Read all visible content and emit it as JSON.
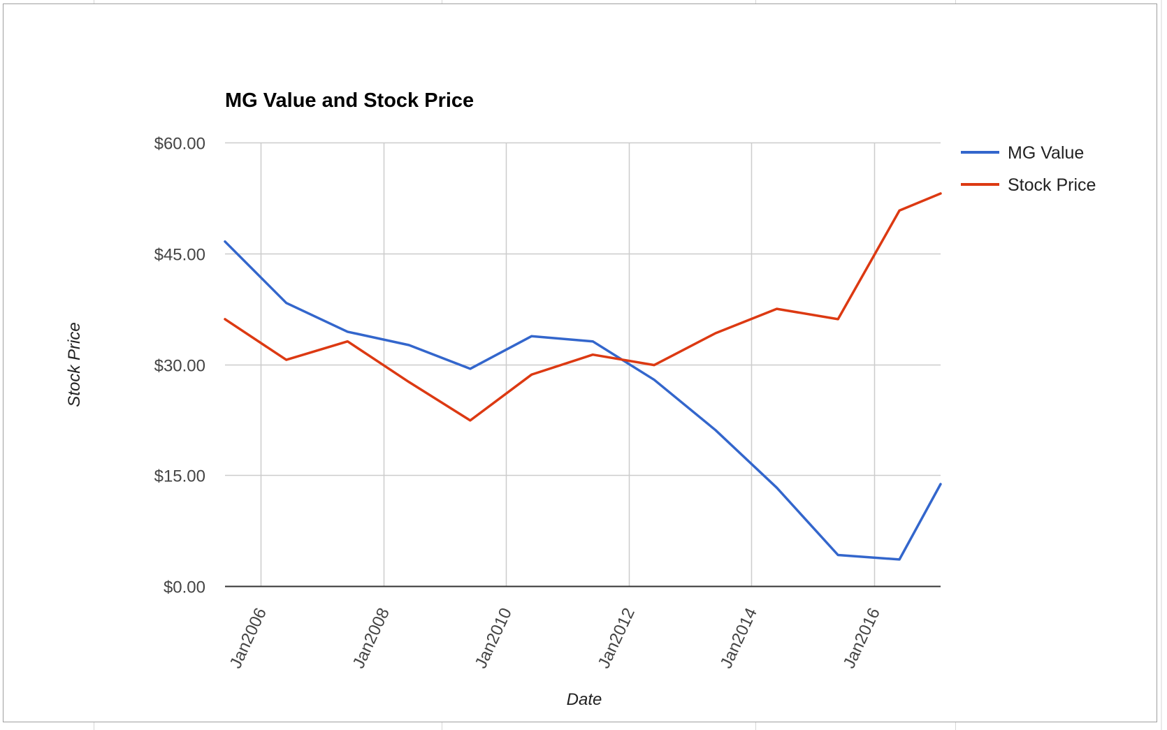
{
  "chart_data": {
    "type": "line",
    "title": "MG Value and Stock Price",
    "xlabel": "Date",
    "ylabel": "Stock Price",
    "ylim": [
      0,
      60
    ],
    "y_ticks": [
      "$0.00",
      "$15.00",
      "$30.00",
      "$45.00",
      "$60.00"
    ],
    "y_tick_values": [
      0,
      15,
      30,
      45,
      60
    ],
    "x_ticks": [
      "Jan2006",
      "Jan2008",
      "Jan2010",
      "Jan2012",
      "Jan2014",
      "Jan2016"
    ],
    "x_tick_values": [
      "2006-01-01",
      "2008-01-01",
      "2010-01-01",
      "2012-01-01",
      "2014-01-01",
      "2016-01-01"
    ],
    "xlim": [
      "2005-06-01",
      "2017-02-01"
    ],
    "grid": true,
    "legend_position": "right",
    "x": [
      "2005-06-01",
      "2006-06-01",
      "2007-06-01",
      "2008-06-01",
      "2009-06-01",
      "2010-06-01",
      "2011-06-01",
      "2012-06-01",
      "2013-06-01",
      "2014-06-01",
      "2015-06-01",
      "2016-06-01",
      "2017-02-01"
    ],
    "series": [
      {
        "name": "MG Value",
        "color": "#3366cc",
        "values": [
          46.6,
          38.3,
          34.4,
          32.6,
          29.4,
          33.8,
          33.1,
          27.9,
          21.1,
          13.3,
          4.2,
          3.6,
          13.8
        ]
      },
      {
        "name": "Stock Price",
        "color": "#dc3912",
        "values": [
          36.1,
          30.6,
          33.1,
          27.6,
          22.4,
          28.6,
          31.3,
          29.9,
          34.2,
          37.5,
          36.1,
          50.8,
          53.1
        ]
      }
    ]
  }
}
